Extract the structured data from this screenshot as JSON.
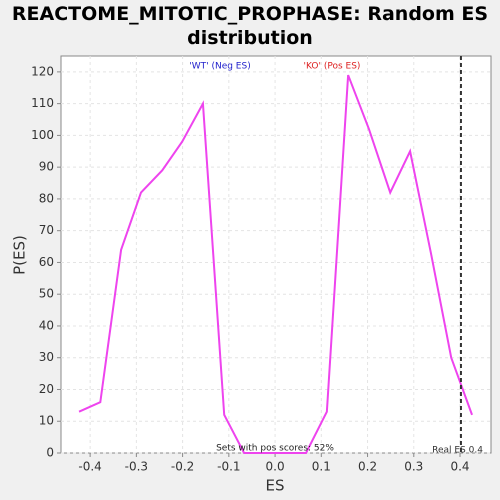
{
  "chart_data": {
    "type": "line",
    "title": "REACTOME_MITOTIC_PROPHASE: Random ES distribution",
    "xlabel": "ES",
    "ylabel": "P(ES)",
    "series": [
      {
        "color": "#ee44ee",
        "x": [
          -0.424,
          -0.378,
          -0.333,
          -0.29,
          -0.244,
          -0.201,
          -0.156,
          -0.11,
          -0.067,
          -0.022,
          0.024,
          0.067,
          0.112,
          0.158,
          0.203,
          0.249,
          0.292,
          0.337,
          0.381,
          0.426
        ],
        "values": [
          13,
          16,
          64,
          82,
          89,
          98,
          110,
          12,
          0,
          0,
          0,
          0,
          13,
          119,
          102,
          82,
          95,
          63,
          30,
          12
        ]
      }
    ],
    "xlim": [
      -0.463,
      0.467
    ],
    "ylim": [
      0,
      125
    ],
    "xticks": [
      -0.4,
      -0.3,
      -0.2,
      -0.1,
      {
        "value": 0,
        "label": "0.0"
      },
      0.1,
      0.2,
      0.3,
      0.4
    ],
    "yticks": [
      0,
      10,
      20,
      30,
      40,
      50,
      60,
      70,
      80,
      90,
      100,
      110,
      120
    ],
    "grid": true,
    "real_es": {
      "value": 0.402,
      "label": "Real ES 0.4",
      "color": "#333333"
    },
    "annotations": [
      {
        "text": "'WT' (Neg ES)",
        "color": "#2222cc"
      },
      {
        "text": "'KO' (Pos ES)",
        "color": "#dd2222"
      },
      {
        "text": "Sets with pos scores: 52%",
        "color": "#222222"
      }
    ]
  }
}
